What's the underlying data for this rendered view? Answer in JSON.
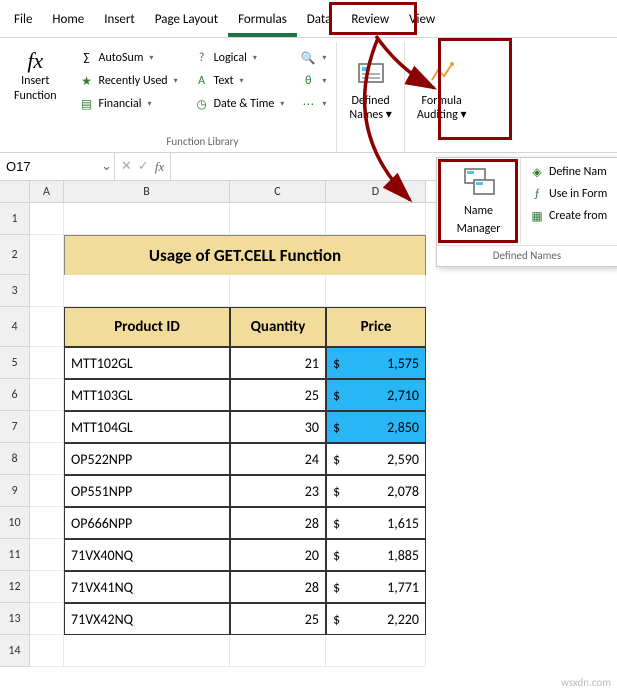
{
  "tabs": [
    "File",
    "Home",
    "Insert",
    "Page Layout",
    "Formulas",
    "Data",
    "Review",
    "View"
  ],
  "activeTab": 4,
  "insertFn": {
    "label1": "Insert",
    "label2": "Function"
  },
  "library": {
    "autosum": "AutoSum",
    "recently": "Recently Used",
    "financial": "Financial",
    "logical": "Logical",
    "text": "Text",
    "datetime": "Date & Time",
    "groupLabel": "Function Library"
  },
  "definedNames": {
    "label1": "Defined",
    "label2": "Names"
  },
  "formulaAuditing": {
    "label1": "Formula",
    "label2": "Auditing"
  },
  "nameBox": "O17",
  "dropdown": {
    "nameManager": {
      "label1": "Name",
      "label2": "Manager"
    },
    "defineName": "Define Nam",
    "useInFormula": "Use in Form",
    "createFrom": "Create from",
    "groupLabel": "Defined Names"
  },
  "columns": [
    "A",
    "B",
    "C",
    "D"
  ],
  "rows": [
    "1",
    "2",
    "3",
    "4",
    "5",
    "6",
    "7",
    "8",
    "9",
    "10",
    "11",
    "12",
    "13",
    "14"
  ],
  "title": "Usage of GET.CELL Function",
  "headers": {
    "b": "Product ID",
    "c": "Quantity",
    "d": "Price"
  },
  "data": [
    {
      "id": "MTT102GL",
      "qty": "21",
      "price": "1,575",
      "hl": true
    },
    {
      "id": "MTT103GL",
      "qty": "25",
      "price": "2,710",
      "hl": true
    },
    {
      "id": "MTT104GL",
      "qty": "30",
      "price": "2,850",
      "hl": true
    },
    {
      "id": "OP522NPP",
      "qty": "24",
      "price": "2,590",
      "hl": false
    },
    {
      "id": "OP551NPP",
      "qty": "23",
      "price": "2,078",
      "hl": false
    },
    {
      "id": "OP666NPP",
      "qty": "28",
      "price": "1,615",
      "hl": false
    },
    {
      "id": "71VX40NQ",
      "qty": "20",
      "price": "1,885",
      "hl": false
    },
    {
      "id": "71VX41NQ",
      "qty": "28",
      "price": "1,771",
      "hl": false
    },
    {
      "id": "71VX42NQ",
      "qty": "25",
      "price": "2,220",
      "hl": false
    }
  ],
  "watermark": "wsxdn.com"
}
